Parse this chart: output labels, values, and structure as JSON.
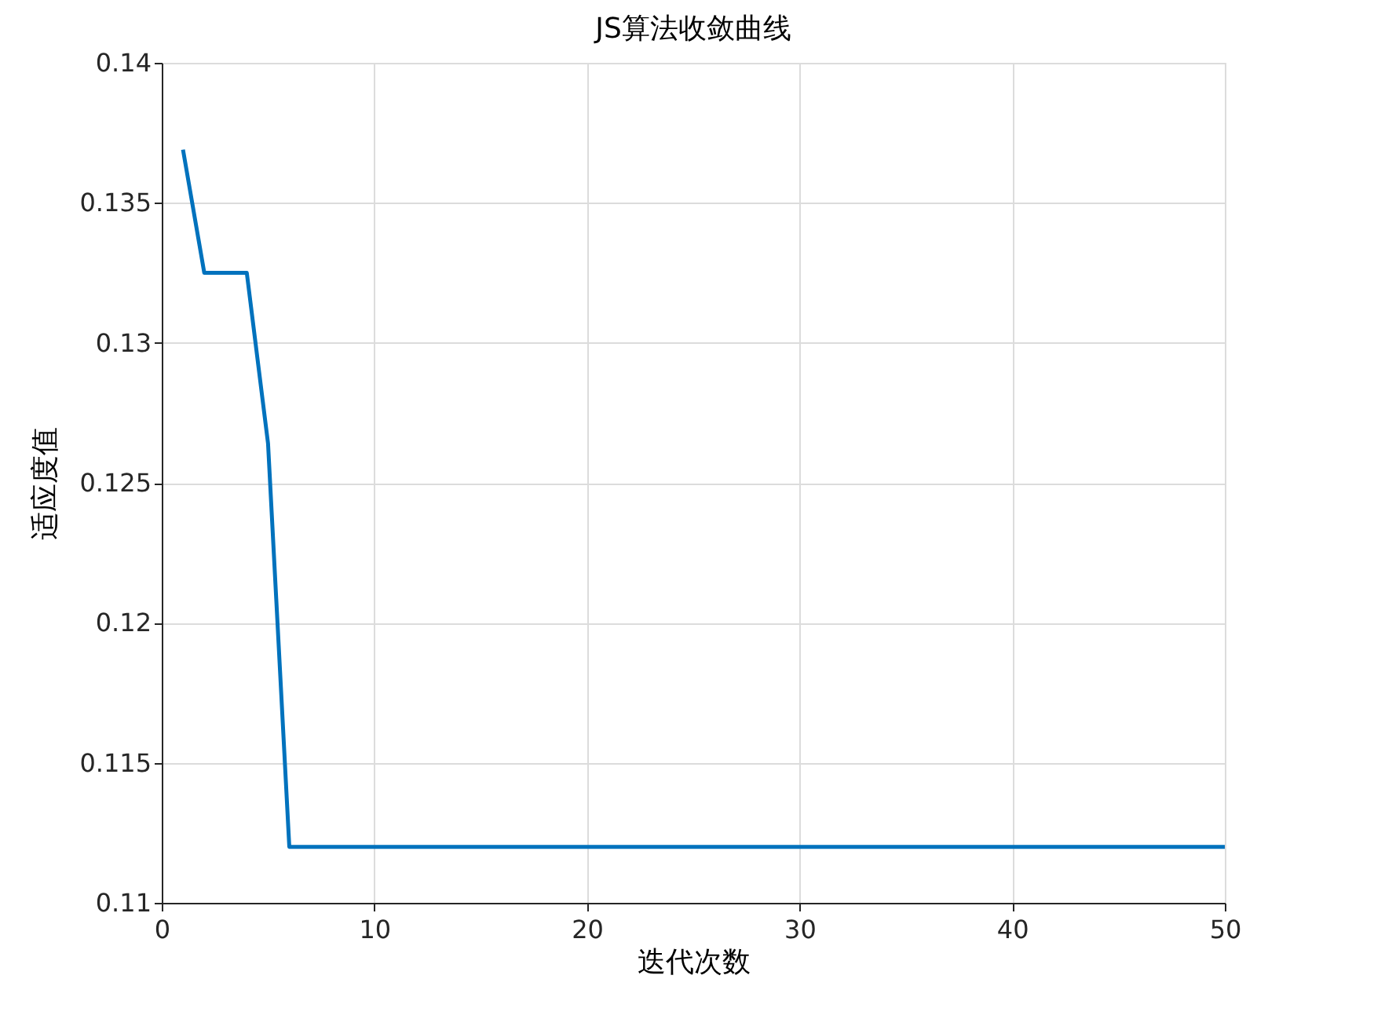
{
  "chart_data": {
    "type": "line",
    "title": "JS算法收敛曲线",
    "xlabel": "迭代次数",
    "ylabel": "适应度值",
    "x": [
      1,
      2,
      3,
      4,
      5,
      6,
      7,
      8,
      9,
      10,
      11,
      12,
      13,
      14,
      15,
      16,
      17,
      18,
      19,
      20,
      21,
      22,
      23,
      24,
      25,
      26,
      27,
      28,
      29,
      30,
      31,
      32,
      33,
      34,
      35,
      36,
      37,
      38,
      39,
      40,
      41,
      42,
      43,
      44,
      45,
      46,
      47,
      48,
      49,
      50
    ],
    "series": [
      {
        "color": "#0072bd",
        "values": [
          0.1369,
          0.1325,
          0.1325,
          0.1325,
          0.1264,
          0.112,
          0.112,
          0.112,
          0.112,
          0.112,
          0.112,
          0.112,
          0.112,
          0.112,
          0.112,
          0.112,
          0.112,
          0.112,
          0.112,
          0.112,
          0.112,
          0.112,
          0.112,
          0.112,
          0.112,
          0.112,
          0.112,
          0.112,
          0.112,
          0.112,
          0.112,
          0.112,
          0.112,
          0.112,
          0.112,
          0.112,
          0.112,
          0.112,
          0.112,
          0.112,
          0.112,
          0.112,
          0.112,
          0.112,
          0.112,
          0.112,
          0.112,
          0.112,
          0.112,
          0.112
        ]
      }
    ],
    "xlim": [
      0,
      50
    ],
    "xticks": [
      0,
      10,
      20,
      30,
      40,
      50
    ],
    "ylim": [
      0.11,
      0.14
    ],
    "yticks": [
      0.11,
      0.115,
      0.12,
      0.125,
      0.13,
      0.135,
      0.14
    ],
    "grid": true,
    "marker": "none",
    "line_style": "solid"
  }
}
